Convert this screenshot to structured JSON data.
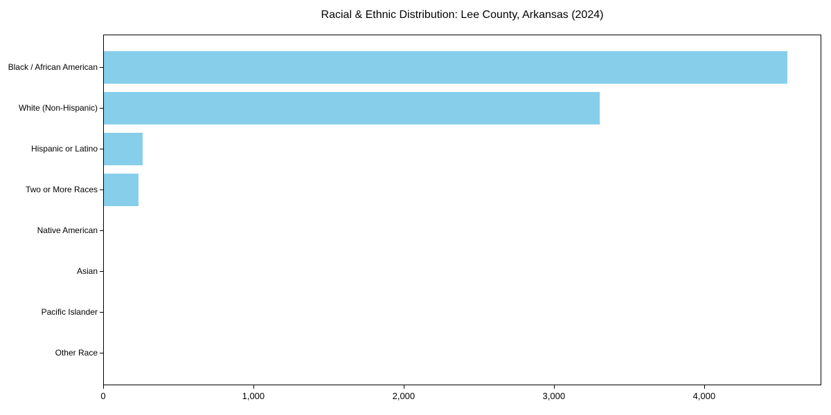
{
  "chart_data": {
    "type": "bar",
    "orientation": "horizontal",
    "title": "Racial & Ethnic Distribution: Lee County, Arkansas (2024)",
    "categories": [
      "Black / African American",
      "White (Non-Hispanic)",
      "Hispanic or Latino",
      "Two or More Races",
      "Native American",
      "Asian",
      "Pacific Islander",
      "Other Race"
    ],
    "values": [
      4550,
      3300,
      260,
      230,
      0,
      0,
      0,
      0
    ],
    "xlabel": "",
    "ylabel": "",
    "xlim": [
      0,
      4780
    ],
    "xticks": [
      {
        "value": 0,
        "label": "0"
      },
      {
        "value": 1000,
        "label": "1,000"
      },
      {
        "value": 2000,
        "label": "2,000"
      },
      {
        "value": 3000,
        "label": "3,000"
      },
      {
        "value": 4000,
        "label": "4,000"
      }
    ],
    "grid": false,
    "legend": null,
    "bar_color": "#87CEEB",
    "background_color": "#FFFFFF",
    "axis_color": "#000000"
  }
}
